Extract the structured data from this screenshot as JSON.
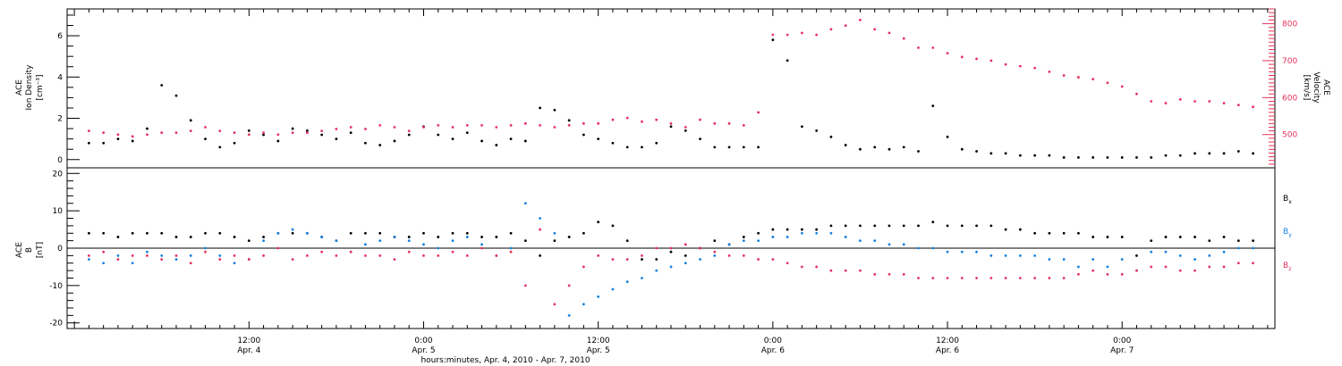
{
  "chart_data": [
    {
      "type": "scatter",
      "panel": "top",
      "ylabel_left": [
        "ACE",
        "Ion Density",
        "[cm⁻³]"
      ],
      "ylabel_right": [
        "ACE",
        "Velocity",
        "[km/s]"
      ],
      "x_range_hours": [
        -12.5,
        70.5
      ],
      "ylim_left": [
        -0.4,
        7.3
      ],
      "ylim_right": [
        410,
        840
      ],
      "yticks_left": [
        0,
        2,
        4,
        6
      ],
      "yticks_right": [
        500,
        600,
        700,
        800
      ],
      "series": [
        {
          "name": "density",
          "color": "#000000",
          "x": [
            -11,
            -10,
            -9,
            -8,
            -7,
            -6,
            -5,
            -4,
            -3,
            -2,
            -1,
            0,
            1,
            2,
            3,
            4,
            5,
            6,
            7,
            8,
            9,
            10,
            11,
            12,
            13,
            14,
            15,
            16,
            17,
            18,
            19,
            20,
            21,
            22,
            23,
            24,
            25,
            26,
            27,
            28,
            29,
            30,
            31,
            32,
            33,
            34,
            35,
            36,
            37,
            38,
            39,
            40,
            41,
            42,
            43,
            44,
            45,
            46,
            47,
            48,
            49,
            50,
            51,
            52,
            53,
            54,
            55,
            56,
            57,
            58,
            59,
            60,
            61,
            62,
            63,
            64,
            65,
            66,
            67,
            68,
            69
          ],
          "y": [
            0.8,
            0.8,
            1.0,
            0.9,
            1.5,
            3.6,
            3.1,
            1.9,
            1.0,
            0.6,
            0.8,
            1.4,
            1.2,
            0.9,
            1.5,
            1.4,
            1.2,
            1.0,
            1.3,
            0.8,
            0.7,
            0.9,
            1.2,
            1.6,
            1.2,
            1.0,
            1.3,
            0.9,
            0.7,
            1.0,
            0.9,
            2.5,
            2.4,
            1.9,
            1.2,
            1.0,
            0.8,
            0.6,
            0.6,
            0.8,
            1.6,
            1.4,
            1.0,
            0.6,
            0.6,
            0.6,
            0.6,
            5.8,
            4.8,
            1.6,
            1.4,
            1.1,
            0.7,
            0.5,
            0.6,
            0.5,
            0.6,
            0.4,
            2.6,
            1.1,
            0.5,
            0.4,
            0.3,
            0.3,
            0.2,
            0.2,
            0.2,
            0.1,
            0.1,
            0.1,
            0.1,
            0.1,
            0.1,
            0.1,
            0.2,
            0.2,
            0.3,
            0.3,
            0.3,
            0.4,
            0.3
          ]
        },
        {
          "name": "velocity",
          "color": "#e8305c",
          "x": [
            -11,
            -10,
            -9,
            -8,
            -7,
            -6,
            -5,
            -4,
            -3,
            -2,
            -1,
            0,
            1,
            2,
            3,
            4,
            5,
            6,
            7,
            8,
            9,
            10,
            11,
            12,
            13,
            14,
            15,
            16,
            17,
            18,
            19,
            20,
            21,
            22,
            23,
            24,
            25,
            26,
            27,
            28,
            29,
            30,
            31,
            32,
            33,
            34,
            35,
            36,
            37,
            38,
            39,
            40,
            41,
            42,
            43,
            44,
            45,
            46,
            47,
            48,
            49,
            50,
            51,
            52,
            53,
            54,
            55,
            56,
            57,
            58,
            59,
            60,
            61,
            62,
            63,
            64,
            65,
            66,
            67,
            68,
            69
          ],
          "y": [
            510,
            505,
            500,
            495,
            500,
            505,
            505,
            510,
            520,
            510,
            505,
            500,
            505,
            500,
            505,
            505,
            510,
            515,
            520,
            515,
            525,
            520,
            510,
            520,
            525,
            520,
            525,
            525,
            520,
            525,
            530,
            525,
            520,
            525,
            530,
            530,
            540,
            545,
            535,
            540,
            530,
            520,
            540,
            530,
            530,
            525,
            560,
            770,
            770,
            775,
            770,
            785,
            795,
            810,
            785,
            775,
            760,
            735,
            735,
            720,
            710,
            705,
            700,
            690,
            685,
            680,
            670,
            660,
            655,
            650,
            640,
            630,
            610,
            590,
            585,
            595,
            590,
            590,
            585,
            580,
            575
          ]
        }
      ]
    },
    {
      "type": "scatter",
      "panel": "bottom",
      "ylabel_left": [
        "ACE",
        "B",
        "[nT]"
      ],
      "x_range_hours": [
        -12.5,
        70.5
      ],
      "ylim": [
        -21.5,
        21.5
      ],
      "yticks": [
        -20,
        -10,
        0,
        10,
        20
      ],
      "xticks": [
        {
          "hours": 0,
          "time": "12:00",
          "date": "Apr. 4"
        },
        {
          "hours": 12,
          "time": "0:00",
          "date": "Apr. 5"
        },
        {
          "hours": 24,
          "time": "12:00",
          "date": "Apr. 5"
        },
        {
          "hours": 36,
          "time": "0:00",
          "date": "Apr. 6"
        },
        {
          "hours": 48,
          "time": "12:00",
          "date": "Apr. 6"
        },
        {
          "hours": 60,
          "time": "0:00",
          "date": "Apr. 7"
        }
      ],
      "xlabel": "hours:minutes, Apr.  4, 2010 - Apr.  7, 2010",
      "series": [
        {
          "name": "Bx",
          "color": "#000000",
          "x": [
            -11,
            -10,
            -9,
            -8,
            -7,
            -6,
            -5,
            -4,
            -3,
            -2,
            -1,
            0,
            1,
            2,
            3,
            4,
            5,
            6,
            7,
            8,
            9,
            10,
            11,
            12,
            13,
            14,
            15,
            16,
            17,
            18,
            19,
            20,
            21,
            22,
            23,
            24,
            25,
            26,
            27,
            28,
            29,
            30,
            31,
            32,
            33,
            34,
            35,
            36,
            37,
            38,
            39,
            40,
            41,
            42,
            43,
            44,
            45,
            46,
            47,
            48,
            49,
            50,
            51,
            52,
            53,
            54,
            55,
            56,
            57,
            58,
            59,
            60,
            61,
            62,
            63,
            64,
            65,
            66,
            67,
            68,
            69
          ],
          "y": [
            4,
            4,
            3,
            4,
            4,
            4,
            3,
            3,
            4,
            4,
            3,
            2,
            3,
            4,
            4,
            4,
            3,
            2,
            4,
            4,
            4,
            3,
            3,
            4,
            3,
            4,
            4,
            3,
            3,
            4,
            2,
            -2,
            2,
            3,
            4,
            7,
            6,
            2,
            -3,
            -3,
            -1,
            -2,
            0,
            2,
            1,
            3,
            4,
            5,
            5,
            5,
            5,
            6,
            6,
            6,
            6,
            6,
            6,
            6,
            7,
            6,
            6,
            6,
            6,
            5,
            5,
            4,
            4,
            4,
            4,
            3,
            3,
            3,
            -2,
            2,
            3,
            3,
            3,
            2,
            3,
            2,
            2
          ]
        },
        {
          "name": "By",
          "color": "#1480e0",
          "x": [
            -11,
            -10,
            -9,
            -8,
            -7,
            -6,
            -5,
            -4,
            -3,
            -2,
            -1,
            0,
            1,
            2,
            3,
            4,
            5,
            6,
            7,
            8,
            9,
            10,
            11,
            12,
            13,
            14,
            15,
            16,
            17,
            18,
            19,
            20,
            21,
            22,
            23,
            24,
            25,
            26,
            27,
            28,
            29,
            30,
            31,
            32,
            33,
            34,
            35,
            36,
            37,
            38,
            39,
            40,
            41,
            42,
            43,
            44,
            45,
            46,
            47,
            48,
            49,
            50,
            51,
            52,
            53,
            54,
            55,
            56,
            57,
            58,
            59,
            60,
            61,
            62,
            63,
            64,
            65,
            66,
            67,
            68,
            69
          ],
          "y": [
            -3,
            -4,
            -2,
            -4,
            -1,
            -2,
            -3,
            -2,
            0,
            -2,
            -4,
            -3,
            2,
            4,
            5,
            4,
            3,
            2,
            -1,
            1,
            2,
            3,
            2,
            1,
            0,
            2,
            3,
            1,
            -2,
            0,
            12,
            8,
            4,
            -18,
            -15,
            -13,
            -11,
            -9,
            -8,
            -6,
            -5,
            -4,
            -3,
            -2,
            1,
            2,
            2,
            3,
            3,
            4,
            4,
            4,
            3,
            2,
            2,
            1,
            1,
            0,
            0,
            -1,
            -1,
            -1,
            -2,
            -2,
            -2,
            -2,
            -3,
            -3,
            -5,
            -3,
            -5,
            -3,
            -6,
            -1,
            -1,
            -2,
            -3,
            -2,
            -1,
            0,
            0
          ]
        },
        {
          "name": "Bz",
          "color": "#e8305c",
          "x": [
            -11,
            -10,
            -9,
            -8,
            -7,
            -6,
            -5,
            -4,
            -3,
            -2,
            -1,
            0,
            1,
            2,
            3,
            4,
            5,
            6,
            7,
            8,
            9,
            10,
            11,
            12,
            13,
            14,
            15,
            16,
            17,
            18,
            19,
            20,
            21,
            22,
            23,
            24,
            25,
            26,
            27,
            28,
            29,
            30,
            31,
            32,
            33,
            34,
            35,
            36,
            37,
            38,
            39,
            40,
            41,
            42,
            43,
            44,
            45,
            46,
            47,
            48,
            49,
            50,
            51,
            52,
            53,
            54,
            55,
            56,
            57,
            58,
            59,
            60,
            61,
            62,
            63,
            64,
            65,
            66,
            67,
            68,
            69
          ],
          "y": [
            -2,
            -1,
            -3,
            -2,
            -2,
            -3,
            -2,
            -4,
            -1,
            -3,
            -2,
            -3,
            -2,
            0,
            -3,
            -2,
            -1,
            -2,
            -1,
            -2,
            -2,
            -3,
            -1,
            -2,
            -2,
            -1,
            -2,
            0,
            -2,
            -1,
            -10,
            5,
            -15,
            -10,
            -5,
            -2,
            -3,
            -3,
            -2,
            0,
            0,
            1,
            0,
            -1,
            -2,
            -2,
            -3,
            -3,
            -4,
            -5,
            -5,
            -6,
            -6,
            -6,
            -7,
            -7,
            -7,
            -8,
            -8,
            -8,
            -8,
            -8,
            -8,
            -8,
            -8,
            -8,
            -8,
            -8,
            -7,
            -6,
            -7,
            -7,
            -6,
            -5,
            -5,
            -6,
            -6,
            -5,
            -5,
            -4,
            -4
          ]
        }
      ],
      "legend": [
        {
          "letter": "B",
          "sub": "x",
          "color": "#000000"
        },
        {
          "letter": "B",
          "sub": "y",
          "color": "#1480e0"
        },
        {
          "letter": "B",
          "sub": "z",
          "color": "#e8305c"
        }
      ],
      "zero_line": true
    }
  ]
}
